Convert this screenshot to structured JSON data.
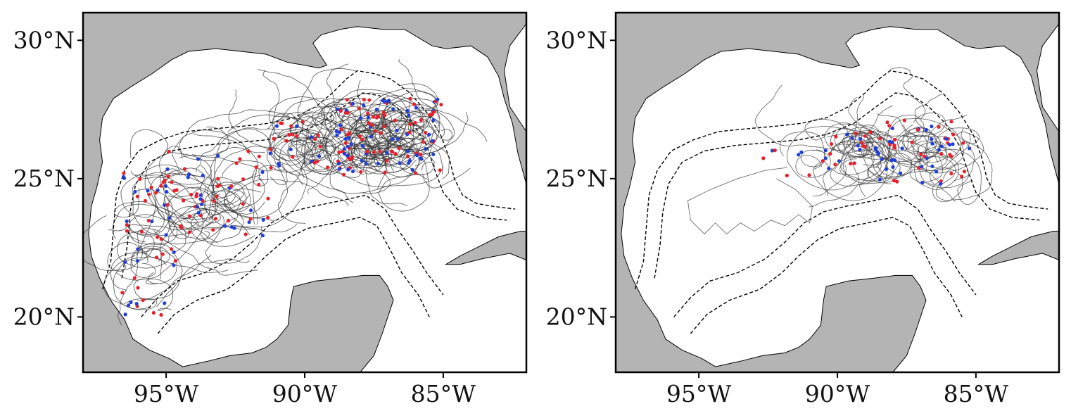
{
  "figure": {
    "panels": [
      {
        "id": "left",
        "lat_ticks": [
          {
            "value": 30,
            "label": "30°N"
          },
          {
            "value": 25,
            "label": "25°N"
          },
          {
            "value": 20,
            "label": "20°N"
          }
        ],
        "lon_ticks": [
          {
            "value": -95,
            "label": "95°W"
          },
          {
            "value": -90,
            "label": "90°W"
          },
          {
            "value": -85,
            "label": "85°W"
          }
        ],
        "track_density": "high"
      },
      {
        "id": "right",
        "lat_ticks": [
          {
            "value": 30,
            "label": "30°N"
          },
          {
            "value": 25,
            "label": "25°N"
          },
          {
            "value": 20,
            "label": "20°N"
          }
        ],
        "lon_ticks": [
          {
            "value": -95,
            "label": "95°W"
          },
          {
            "value": -90,
            "label": "90°W"
          },
          {
            "value": -85,
            "label": "85°W"
          }
        ],
        "track_density": "low"
      }
    ],
    "extent": {
      "lon": [
        -98,
        -82
      ],
      "lat": [
        18,
        31
      ]
    },
    "colors": {
      "land": "#b4b4b4",
      "ocean": "#ffffff",
      "track": "#333333",
      "contour": "#000000",
      "marker_red": "#e8202a",
      "marker_blue": "#1f3fd8"
    }
  }
}
